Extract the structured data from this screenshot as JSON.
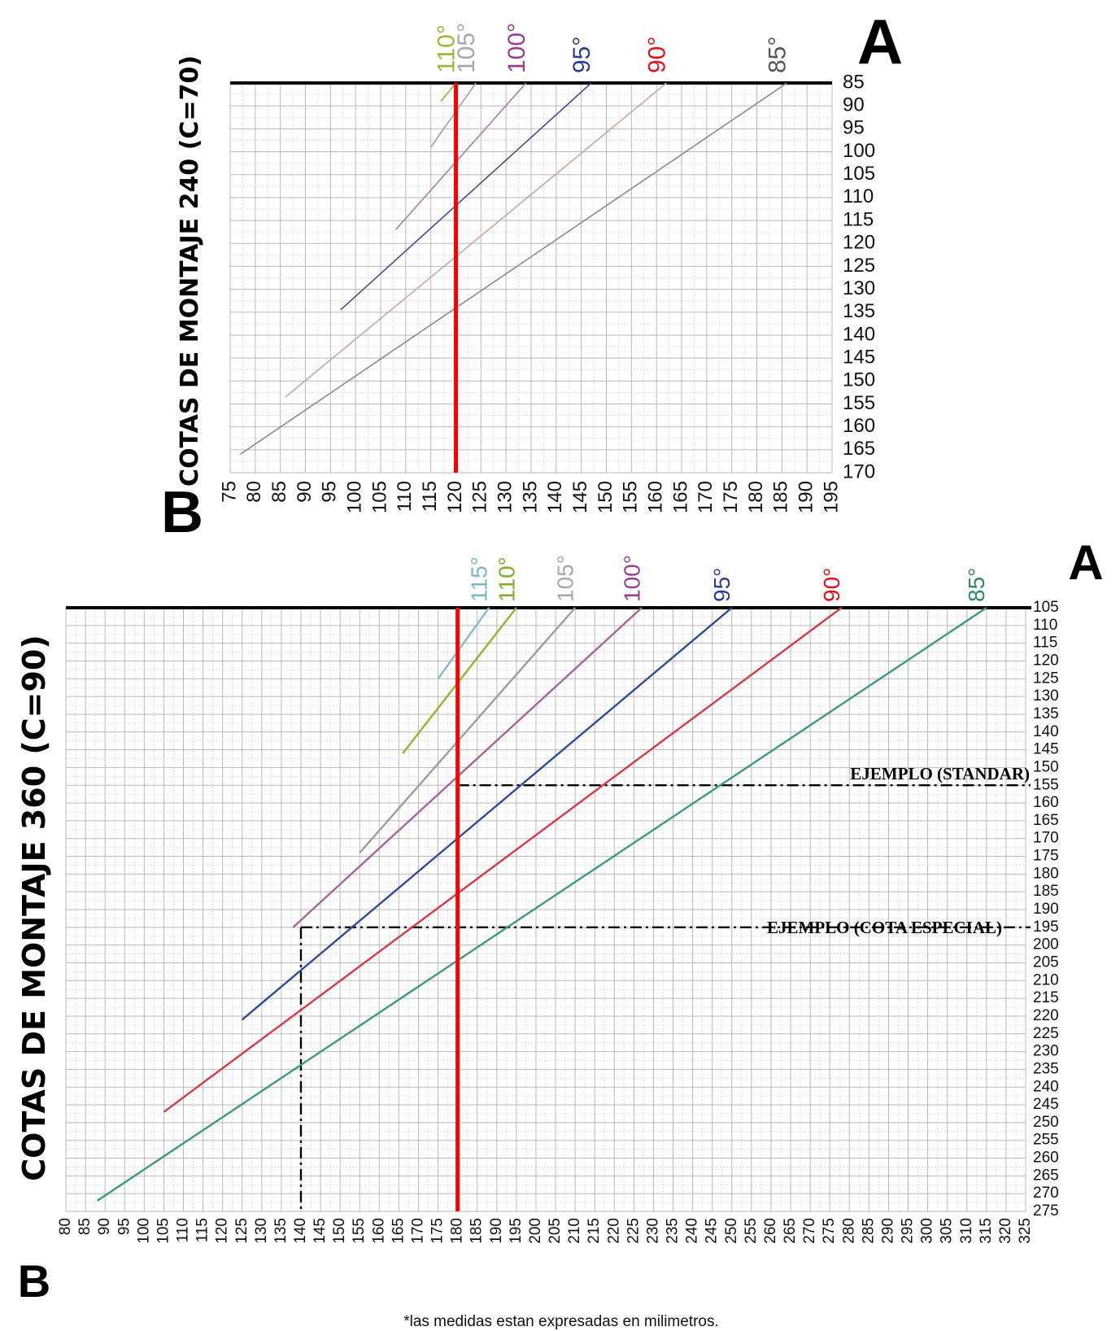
{
  "chart_data": [
    {
      "type": "line",
      "corner_label_top": "A",
      "corner_label_bottom": "B",
      "ylabel": "COTAS DE MONTAJE 240 (C=70)",
      "xlim": [
        75,
        195
      ],
      "ylim": [
        85,
        170
      ],
      "x_ticks": [
        75,
        80,
        85,
        90,
        95,
        100,
        105,
        110,
        115,
        120,
        125,
        130,
        135,
        140,
        145,
        150,
        155,
        160,
        165,
        170,
        175,
        180,
        185,
        190,
        195
      ],
      "y_ticks": [
        85,
        90,
        95,
        100,
        105,
        110,
        115,
        120,
        125,
        130,
        135,
        140,
        145,
        150,
        155,
        160,
        165,
        170
      ],
      "grid": true,
      "reference_line": {
        "x": 120,
        "color": "#ff0000"
      },
      "series": [
        {
          "name": "110°",
          "color": "#8fb23a",
          "label_color": "#9ab83a",
          "points": [
            [
              117,
              89
            ],
            [
              120,
              85
            ]
          ]
        },
        {
          "name": "105°",
          "color": "#a0a0a0",
          "label_color": "#a8a8a8",
          "points": [
            [
              115,
              99
            ],
            [
              124,
              85
            ]
          ]
        },
        {
          "name": "100°",
          "color": "#b07aa8",
          "label_color": "#9a3d8f",
          "points": [
            [
              108,
              117
            ],
            [
              134,
              85
            ]
          ]
        },
        {
          "name": "95°",
          "color": "#3f4f8e",
          "label_color": "#2a3d8f",
          "points": [
            [
              97,
              134.5
            ],
            [
              147,
              85
            ]
          ]
        },
        {
          "name": "90°",
          "color": "#c8a8a0",
          "label_color": "#e0101a",
          "points": [
            [
              86,
              153.5
            ],
            [
              162,
              85
            ]
          ]
        },
        {
          "name": "85°",
          "color": "#8a8a8a",
          "label_color": "#555555",
          "points": [
            [
              77,
              166
            ],
            [
              186,
              85
            ]
          ]
        }
      ]
    },
    {
      "type": "line",
      "corner_label_top": "A",
      "corner_label_bottom": "B",
      "ylabel": "COTAS DE MONTAJE 360 (C=90)",
      "xlim": [
        80,
        325
      ],
      "ylim": [
        105,
        275
      ],
      "x_ticks": [
        80,
        85,
        90,
        95,
        100,
        105,
        110,
        115,
        120,
        125,
        130,
        135,
        140,
        145,
        150,
        155,
        160,
        165,
        170,
        175,
        180,
        185,
        190,
        195,
        200,
        205,
        210,
        215,
        220,
        225,
        230,
        235,
        240,
        245,
        250,
        255,
        260,
        265,
        270,
        275,
        280,
        285,
        290,
        295,
        300,
        305,
        310,
        315,
        320,
        325
      ],
      "y_ticks": [
        105,
        110,
        115,
        120,
        125,
        130,
        135,
        140,
        145,
        150,
        155,
        160,
        165,
        170,
        175,
        180,
        185,
        190,
        195,
        200,
        205,
        210,
        215,
        220,
        225,
        230,
        235,
        240,
        245,
        250,
        255,
        260,
        265,
        270,
        275
      ],
      "grid": true,
      "reference_line": {
        "x": 180,
        "color": "#ff0000"
      },
      "series": [
        {
          "name": "115°",
          "color": "#8ab8cc",
          "label_color": "#7ab8c8",
          "points": [
            [
              175,
              125
            ],
            [
              188,
              105
            ]
          ]
        },
        {
          "name": "110°",
          "color": "#8db72e",
          "label_color": "#7fae2a",
          "points": [
            [
              166,
              146
            ],
            [
              195,
              105
            ]
          ]
        },
        {
          "name": "105°",
          "color": "#9d9d9d",
          "label_color": "#a8a8a8",
          "points": [
            [
              155,
              174
            ],
            [
              210,
              105
            ]
          ]
        },
        {
          "name": "100°",
          "color": "#a5649a",
          "label_color": "#9a3d8f",
          "points": [
            [
              138,
              195
            ],
            [
              227,
              105
            ]
          ]
        },
        {
          "name": "95°",
          "color": "#2f4b94",
          "label_color": "#2a3d8f",
          "points": [
            [
              125,
              221
            ],
            [
              250,
              105
            ]
          ]
        },
        {
          "name": "90°",
          "color": "#d23a48",
          "label_color": "#e0101a",
          "points": [
            [
              105,
              247
            ],
            [
              278,
              105
            ]
          ]
        },
        {
          "name": "85°",
          "color": "#3e9a72",
          "label_color": "#2f8a5f",
          "points": [
            [
              88,
              272
            ],
            [
              315,
              105
            ]
          ]
        }
      ],
      "annotations": [
        {
          "text": "EJEMPLO (STANDAR)",
          "y": 155,
          "x_from": 180,
          "x_to": 325
        },
        {
          "text": "EJEMPLO (COTA ESPECIAL)",
          "y": 195,
          "x_from": 140,
          "x_to": 325,
          "vertical_x": 140,
          "vertical_to_y": 275
        }
      ]
    }
  ],
  "footnote": "*las medidas estan expresadas en milimetros."
}
